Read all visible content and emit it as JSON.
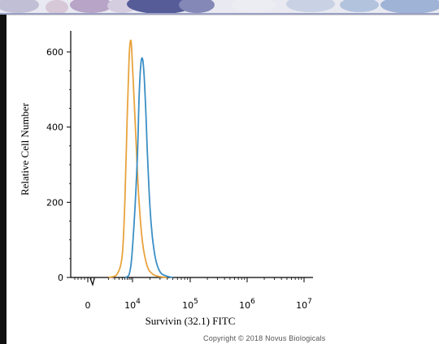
{
  "chart_data": {
    "type": "line",
    "title": "",
    "xlabel": "Survivin (32.1) FITC",
    "ylabel": "Relative Cell Number",
    "x_scale": "biexponential",
    "x_ticks": [
      {
        "base": "0",
        "exp": ""
      },
      {
        "base": "10",
        "exp": "4"
      },
      {
        "base": "10",
        "exp": "5"
      },
      {
        "base": "10",
        "exp": "6"
      },
      {
        "base": "10",
        "exp": "7"
      }
    ],
    "y_ticks": [
      "0",
      "200",
      "400",
      "600"
    ],
    "ylim": [
      0,
      650
    ],
    "grid": false,
    "legend": "none",
    "series": [
      {
        "color": "#e8a33d",
        "x": [
          2000,
          3500,
          5000,
          6000,
          7000,
          8000,
          9000,
          10000,
          11000,
          12000,
          13000,
          15000,
          18000,
          22000,
          28000,
          40000
        ],
        "y": [
          0,
          8,
          60,
          210,
          430,
          590,
          630,
          560,
          430,
          300,
          200,
          90,
          30,
          10,
          3,
          0
        ]
      },
      {
        "color": "#3b8fc6",
        "x": [
          6000,
          8000,
          10000,
          12000,
          13000,
          14000,
          15000,
          16000,
          17000,
          18000,
          20000,
          22000,
          25000,
          30000,
          38000,
          50000
        ],
        "y": [
          0,
          8,
          80,
          300,
          480,
          570,
          580,
          530,
          440,
          340,
          190,
          110,
          50,
          15,
          4,
          0
        ]
      }
    ]
  },
  "copyright": "Copyright © 2018 Novus Biologicals",
  "colors": {
    "axis": "#000000",
    "orange_series": "#e8a33d",
    "blue_series": "#3b8fc6"
  }
}
